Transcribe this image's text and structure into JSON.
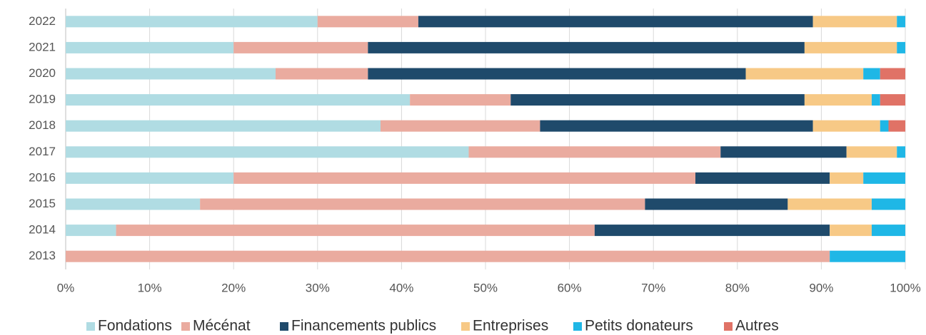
{
  "chart_data": {
    "type": "stacked-barh",
    "categories": [
      "2022",
      "2021",
      "2020",
      "2019",
      "2018",
      "2017",
      "2016",
      "2015",
      "2014",
      "2013"
    ],
    "series": [
      {
        "name": "Fondations",
        "color": "#b0dce3",
        "values": [
          30,
          20,
          25,
          41,
          37.5,
          48,
          20,
          16,
          6,
          0
        ]
      },
      {
        "name": "Mécénat",
        "color": "#eaab9f",
        "values": [
          12,
          16,
          11,
          12,
          19,
          30,
          55,
          53,
          57,
          91
        ]
      },
      {
        "name": "Financements publics",
        "color": "#1f4a6b",
        "values": [
          47,
          52,
          45,
          35,
          32.5,
          15,
          16,
          17,
          28,
          0
        ]
      },
      {
        "name": "Entreprises",
        "color": "#f7c986",
        "values": [
          10,
          11,
          14,
          8,
          8,
          6,
          4,
          10,
          5,
          0
        ]
      },
      {
        "name": "Petits donateurs",
        "color": "#1fb7e6",
        "values": [
          1,
          1,
          2,
          1,
          1,
          1,
          5,
          4,
          4,
          9
        ]
      },
      {
        "name": "Autres",
        "color": "#e07266",
        "values": [
          0,
          0,
          3,
          3,
          2,
          0,
          0,
          0,
          0,
          0
        ]
      }
    ],
    "xlim": [
      0,
      100
    ],
    "xticks": [
      {
        "value": 0,
        "label": "0%"
      },
      {
        "value": 10,
        "label": "10%"
      },
      {
        "value": 20,
        "label": "20%"
      },
      {
        "value": 30,
        "label": "30%"
      },
      {
        "value": 40,
        "label": "40%"
      },
      {
        "value": 50,
        "label": "50%"
      },
      {
        "value": 60,
        "label": "60%"
      },
      {
        "value": 70,
        "label": "70%"
      },
      {
        "value": 80,
        "label": "80%"
      },
      {
        "value": 90,
        "label": "90%"
      },
      {
        "value": 100,
        "label": "100%"
      }
    ],
    "grid": true,
    "legend": "bottom"
  }
}
